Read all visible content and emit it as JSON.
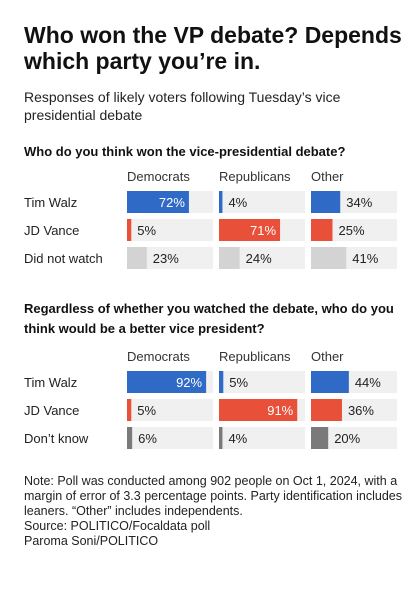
{
  "title": "Who won the VP debate? Depends which party you’re in.",
  "subtitle": "Responses of likely voters following Tuesday’s vice presidential debate",
  "colors": {
    "democrats": "#2f6ac6",
    "republicans": "#e8503a",
    "other": "#2f6ac6",
    "undecided": "#d3d3d3",
    "undecided_dark": "#7a7a7a",
    "track": "#f0f0f0"
  },
  "chart_data": [
    {
      "type": "bar",
      "question": "Who do you think won the vice-presidential debate?",
      "columns": [
        "Democrats",
        "Republicans",
        "Other"
      ],
      "rows": [
        {
          "label": "Tim Walz",
          "values": [
            72,
            4,
            34
          ],
          "labels": [
            "72%",
            "4%",
            "34%"
          ]
        },
        {
          "label": "JD Vance",
          "values": [
            5,
            71,
            25
          ],
          "labels": [
            "5%",
            "71%",
            "25%"
          ]
        },
        {
          "label": "Did not watch",
          "values": [
            23,
            24,
            41
          ],
          "labels": [
            "23%",
            "24%",
            "41%"
          ]
        }
      ],
      "xlim": [
        0,
        100
      ]
    },
    {
      "type": "bar",
      "question": "Regardless of whether you watched the debate, who do you think would be a better vice president?",
      "columns": [
        "Democrats",
        "Republicans",
        "Other"
      ],
      "rows": [
        {
          "label": "Tim Walz",
          "values": [
            92,
            5,
            44
          ],
          "labels": [
            "92%",
            "5%",
            "44%"
          ]
        },
        {
          "label": "JD Vance",
          "values": [
            5,
            91,
            36
          ],
          "labels": [
            "5%",
            "91%",
            "36%"
          ]
        },
        {
          "label": "Don’t know",
          "values": [
            6,
            4,
            20
          ],
          "labels": [
            "6%",
            "4%",
            "20%"
          ]
        }
      ],
      "xlim": [
        0,
        100
      ]
    }
  ],
  "note": "Note: Poll was conducted among 902 people on Oct 1, 2024, with a margin of error of 3.3 percentage points. Party identification includes leaners. “Other” includes independents.",
  "source": "Source: POLITICO/Focaldata poll",
  "credit": "Paroma Soni/POLITICO"
}
